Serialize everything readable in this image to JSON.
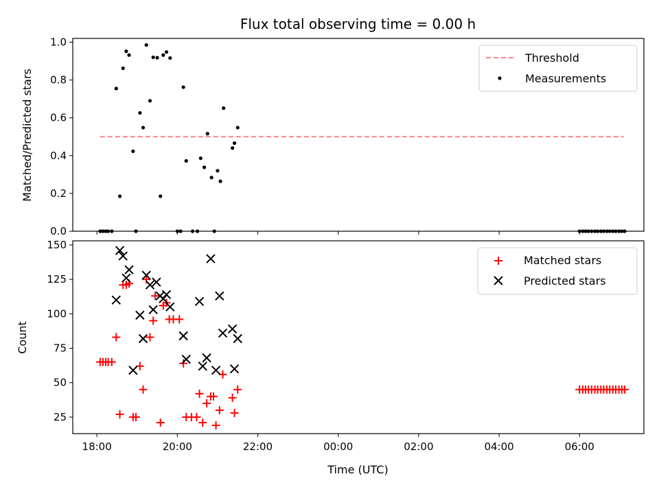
{
  "chart_data": [
    {
      "type": "scatter",
      "title": "Flux total observing time = 0.00 h",
      "ylabel": "Matched/Predicted stars",
      "ylim": [
        0,
        1.02
      ],
      "yticks": [
        0.0,
        0.2,
        0.4,
        0.6,
        0.8,
        1.0
      ],
      "ytick_labels": [
        "0.0",
        "0.2",
        "0.4",
        "0.6",
        "0.8",
        "1.0"
      ],
      "xlim_hours": [
        17.4,
        31.6
      ],
      "legend_position": "top-right",
      "threshold": {
        "name": "Threshold",
        "value": 0.5,
        "x_range": [
          18.08,
          31.1
        ],
        "color": "#ff8080",
        "style": "dashed"
      },
      "series": [
        {
          "name": "Measurements",
          "color": "#000000",
          "marker": "dot",
          "points": [
            [
              18.08,
              0
            ],
            [
              18.15,
              0
            ],
            [
              18.22,
              0
            ],
            [
              18.28,
              0
            ],
            [
              18.37,
              0
            ],
            [
              18.48,
              0.755
            ],
            [
              18.57,
              0.185
            ],
            [
              18.65,
              0.862
            ],
            [
              18.73,
              0.952
            ],
            [
              18.8,
              0.932
            ],
            [
              18.9,
              0.423
            ],
            [
              18.97,
              0
            ],
            [
              19.07,
              0.626
            ],
            [
              19.15,
              0.548
            ],
            [
              19.23,
              0.985
            ],
            [
              19.32,
              0.69
            ],
            [
              19.4,
              0.92
            ],
            [
              19.5,
              0.918
            ],
            [
              19.58,
              0.185
            ],
            [
              19.65,
              0.932
            ],
            [
              19.73,
              0.948
            ],
            [
              19.82,
              0.916
            ],
            [
              20.0,
              0
            ],
            [
              20.08,
              0
            ],
            [
              20.15,
              0.762
            ],
            [
              20.22,
              0.372
            ],
            [
              20.38,
              0
            ],
            [
              20.5,
              0
            ],
            [
              20.58,
              0.386
            ],
            [
              20.67,
              0.338
            ],
            [
              20.75,
              0.516
            ],
            [
              20.85,
              0.284
            ],
            [
              20.92,
              0
            ],
            [
              21.0,
              0.32
            ],
            [
              21.07,
              0.264
            ],
            [
              21.15,
              0.651
            ],
            [
              21.37,
              0.44
            ],
            [
              21.42,
              0.466
            ],
            [
              21.5,
              0.548
            ],
            [
              30.0,
              0
            ],
            [
              30.08,
              0
            ],
            [
              30.15,
              0
            ],
            [
              30.22,
              0
            ],
            [
              30.3,
              0
            ],
            [
              30.38,
              0
            ],
            [
              30.45,
              0
            ],
            [
              30.53,
              0
            ],
            [
              30.6,
              0
            ],
            [
              30.68,
              0
            ],
            [
              30.75,
              0
            ],
            [
              30.83,
              0
            ],
            [
              30.9,
              0
            ],
            [
              30.98,
              0
            ],
            [
              31.05,
              0
            ],
            [
              31.12,
              0
            ]
          ]
        }
      ]
    },
    {
      "type": "scatter",
      "xlabel": "Time (UTC)",
      "ylabel": "Count",
      "ylim": [
        13,
        153
      ],
      "yticks": [
        25,
        50,
        75,
        100,
        125,
        150
      ],
      "ytick_labels": [
        "25",
        "50",
        "75",
        "100",
        "125",
        "150"
      ],
      "xlim_hours": [
        17.4,
        31.6
      ],
      "xticks_hours": [
        18,
        20,
        22,
        24,
        26,
        28,
        30
      ],
      "xtick_labels": [
        "18:00",
        "20:00",
        "22:00",
        "00:00",
        "02:00",
        "04:00",
        "06:00"
      ],
      "legend_position": "top-right",
      "series": [
        {
          "name": "Matched stars",
          "color": "#ff0000",
          "marker": "plus",
          "points": [
            [
              18.08,
              65
            ],
            [
              18.15,
              65
            ],
            [
              18.22,
              65
            ],
            [
              18.28,
              65
            ],
            [
              18.37,
              65
            ],
            [
              18.48,
              83
            ],
            [
              18.57,
              27
            ],
            [
              18.65,
              121
            ],
            [
              18.73,
              121
            ],
            [
              18.8,
              122
            ],
            [
              18.9,
              25
            ],
            [
              18.97,
              25
            ],
            [
              19.07,
              62
            ],
            [
              19.15,
              45
            ],
            [
              19.23,
              125
            ],
            [
              19.32,
              83
            ],
            [
              19.4,
              95
            ],
            [
              19.45,
              113
            ],
            [
              19.58,
              21
            ],
            [
              19.65,
              106
            ],
            [
              19.73,
              108
            ],
            [
              19.8,
              96
            ],
            [
              19.9,
              96
            ],
            [
              20.05,
              96
            ],
            [
              20.15,
              64
            ],
            [
              20.22,
              25
            ],
            [
              20.35,
              25
            ],
            [
              20.48,
              25
            ],
            [
              20.55,
              42
            ],
            [
              20.63,
              21
            ],
            [
              20.73,
              35
            ],
            [
              20.83,
              40
            ],
            [
              20.9,
              40
            ],
            [
              20.96,
              19
            ],
            [
              21.05,
              30
            ],
            [
              21.13,
              56
            ],
            [
              21.37,
              39
            ],
            [
              21.42,
              28
            ],
            [
              21.5,
              45
            ],
            [
              30.0,
              45
            ],
            [
              30.08,
              45
            ],
            [
              30.15,
              45
            ],
            [
              30.22,
              45
            ],
            [
              30.3,
              45
            ],
            [
              30.38,
              45
            ],
            [
              30.45,
              45
            ],
            [
              30.53,
              45
            ],
            [
              30.6,
              45
            ],
            [
              30.68,
              45
            ],
            [
              30.75,
              45
            ],
            [
              30.83,
              45
            ],
            [
              30.9,
              45
            ],
            [
              30.98,
              45
            ],
            [
              31.05,
              45
            ],
            [
              31.12,
              45
            ]
          ]
        },
        {
          "name": "Predicted stars",
          "color": "#000000",
          "marker": "x",
          "points": [
            [
              18.48,
              110
            ],
            [
              18.57,
              146
            ],
            [
              18.65,
              142
            ],
            [
              18.73,
              126
            ],
            [
              18.8,
              132
            ],
            [
              18.9,
              59
            ],
            [
              19.07,
              99
            ],
            [
              19.15,
              82
            ],
            [
              19.23,
              128
            ],
            [
              19.32,
              121
            ],
            [
              19.4,
              103
            ],
            [
              19.48,
              123
            ],
            [
              19.57,
              113
            ],
            [
              19.65,
              111
            ],
            [
              19.73,
              114
            ],
            [
              19.82,
              105
            ],
            [
              20.15,
              84
            ],
            [
              20.22,
              67
            ],
            [
              20.55,
              109
            ],
            [
              20.63,
              62
            ],
            [
              20.73,
              68
            ],
            [
              20.83,
              140
            ],
            [
              20.96,
              59
            ],
            [
              21.05,
              113
            ],
            [
              21.13,
              86
            ],
            [
              21.37,
              89
            ],
            [
              21.42,
              60
            ],
            [
              21.5,
              82
            ]
          ]
        }
      ]
    }
  ]
}
